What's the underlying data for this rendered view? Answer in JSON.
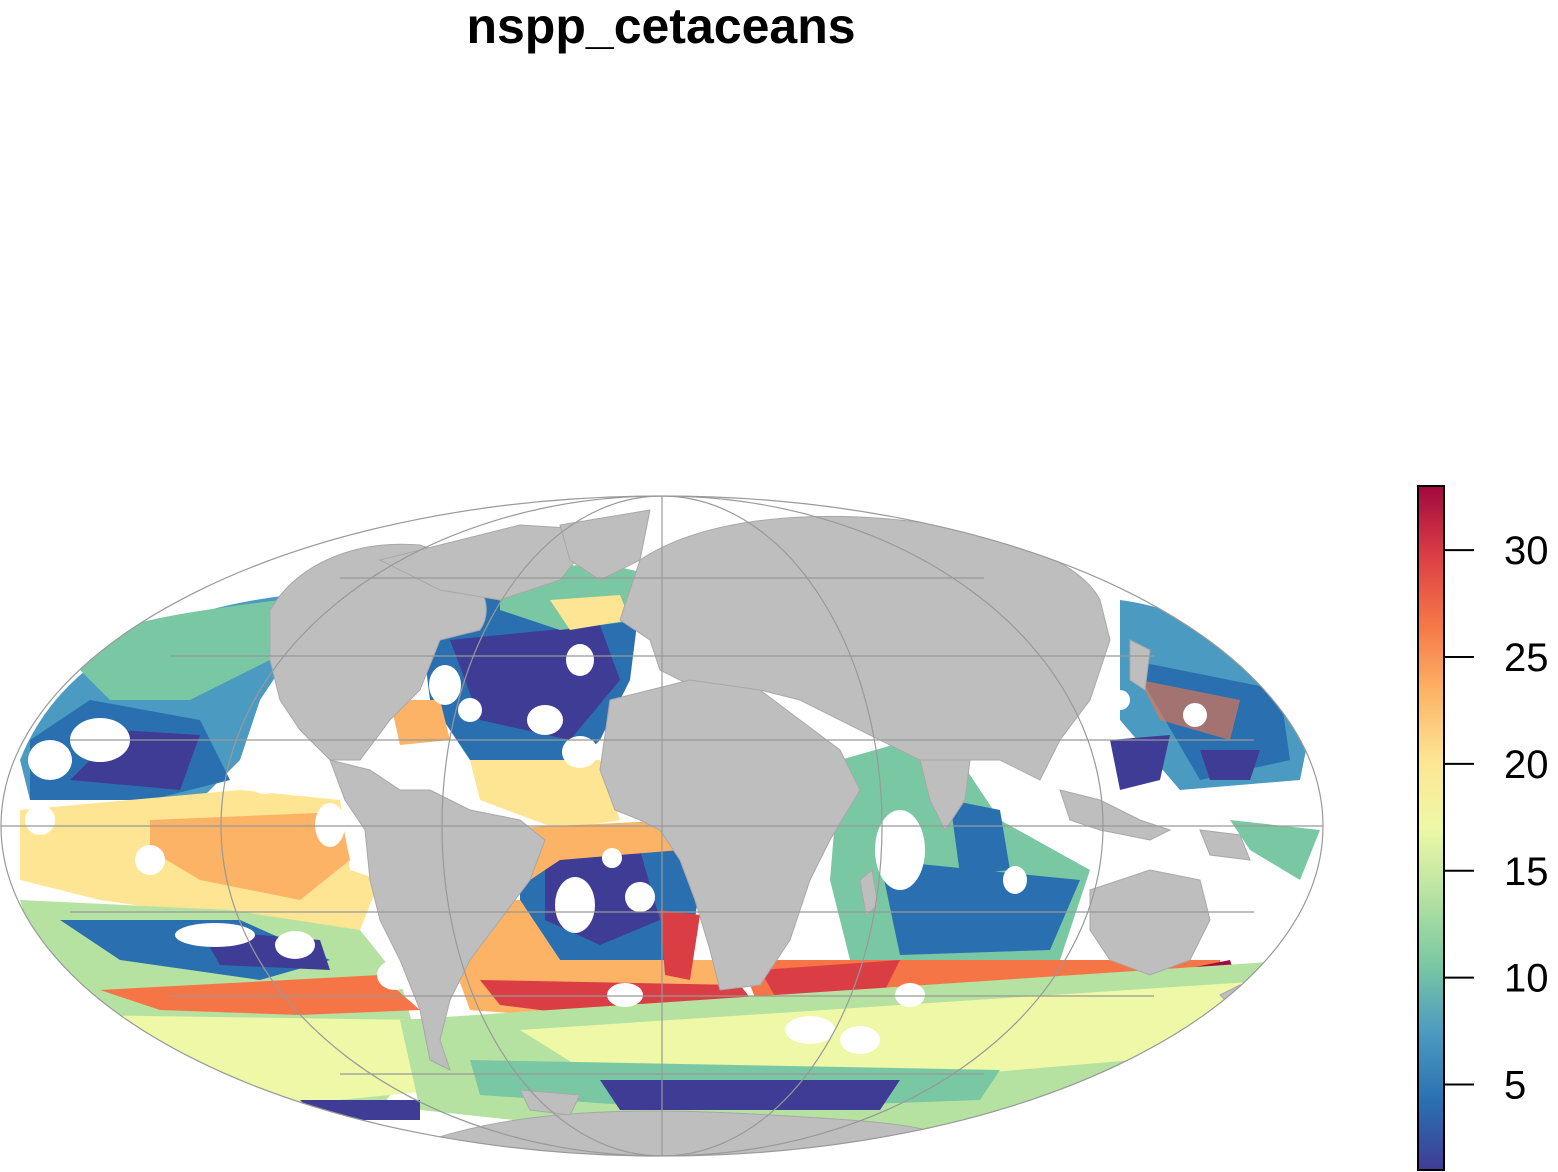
{
  "title": "nspp_cetaceans",
  "map": {
    "projection": "Mollweide",
    "variable": "nspp_cetaceans",
    "land_color": "#bebebe",
    "graticule_color": "#999999",
    "no_data_color": "#ffffff"
  },
  "legend": {
    "min": 1,
    "max": 33,
    "ticks": [
      {
        "value": 5,
        "label": "5"
      },
      {
        "value": 10,
        "label": "10"
      },
      {
        "value": 15,
        "label": "15"
      },
      {
        "value": 20,
        "label": "20"
      },
      {
        "value": 25,
        "label": "25"
      },
      {
        "value": 30,
        "label": "30"
      }
    ],
    "palette": [
      "#3f3c95",
      "#2a70b1",
      "#4b9ac1",
      "#79c8a3",
      "#b6e2a1",
      "#eef8a6",
      "#fde593",
      "#fdb365",
      "#f57547",
      "#db3d45",
      "#a1093f"
    ]
  }
}
